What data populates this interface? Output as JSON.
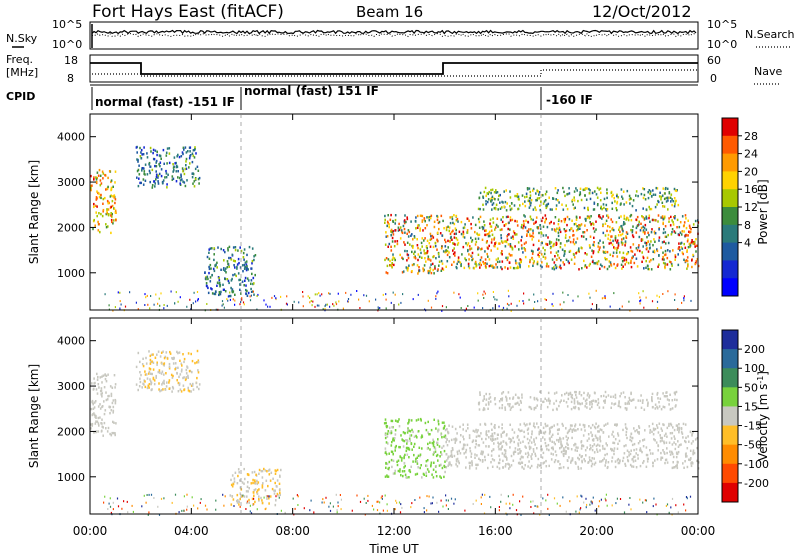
{
  "header": {
    "station": "Fort Hays East (fitACF)",
    "beam": "Beam 16",
    "date": "12/Oct/2012"
  },
  "noise_panel": {
    "left_label": "N.Sky",
    "right_label": "N.Search",
    "left_ticks": [
      "10^5",
      "10^0"
    ],
    "right_ticks": [
      "10^5",
      "10^0"
    ]
  },
  "freq_panel": {
    "left_label_1": "Freq.",
    "left_label_2": "[MHz]",
    "left_ticks": [
      "18",
      "8"
    ],
    "right_label": "Nave",
    "right_ticks": [
      "60",
      "0"
    ]
  },
  "cpid_panel": {
    "label": "CPID",
    "segments": [
      {
        "start_h": 0,
        "label": "normal (fast) -151 IF"
      },
      {
        "start_h": 6,
        "label": "normal (fast) 151 IF"
      },
      {
        "start_h": 18,
        "label": "-160 IF"
      }
    ]
  },
  "power_colorbar": {
    "title": "Power [dB]",
    "ticks": [
      "28",
      "24",
      "20",
      "16",
      "12",
      "8",
      "4"
    ],
    "colors": [
      "#e00000",
      "#ff5a00",
      "#ff9a00",
      "#ffd200",
      "#a8c800",
      "#3c8c3c",
      "#2a7a7a",
      "#1e5aa0",
      "#1428d2",
      "#0000ff"
    ]
  },
  "velocity_colorbar": {
    "title": "Velocity [m s",
    "title_superscript": "-1",
    "title_close": "]",
    "ticks": [
      "200",
      "100",
      "50",
      "15",
      "-15",
      "-50",
      "-100",
      "-200"
    ],
    "colors": [
      "#1e2d9b",
      "#2a6a9a",
      "#3c8c5a",
      "#78d23c",
      "#c8c8c0",
      "#ffbe28",
      "#ff8c00",
      "#ff4a00",
      "#e00000"
    ]
  },
  "slant_axis_label": "Slant Range [km]",
  "range_ticks": [
    "4000",
    "3000",
    "2000",
    "1000"
  ],
  "time_axis_label": "Time UT",
  "time_ticks": [
    "00:00",
    "04:00",
    "08:00",
    "12:00",
    "16:00",
    "20:00",
    "00:00"
  ],
  "chart_data": {
    "type": "heatmap",
    "x_range_hours": [
      0,
      24
    ],
    "y_range_km": [
      180,
      4500
    ],
    "time_axis": "Time UT",
    "panels": [
      {
        "name": "Power",
        "ylabel": "Slant Range [km]",
        "unit": "dB",
        "colorbar_range": [
          0,
          30
        ],
        "regions": [
          {
            "t_start": 0.0,
            "t_end": 1.0,
            "range_lo_km": 1900,
            "range_hi_km": 3300,
            "value_lo": 12,
            "value_hi": 28
          },
          {
            "t_start": 1.8,
            "t_end": 4.3,
            "range_lo_km": 2900,
            "range_hi_km": 3800,
            "value_lo": 4,
            "value_hi": 16
          },
          {
            "t_start": 4.5,
            "t_end": 6.5,
            "range_lo_km": 500,
            "range_hi_km": 1600,
            "value_lo": 4,
            "value_hi": 16
          },
          {
            "t_start": 11.6,
            "t_end": 14.0,
            "range_lo_km": 1000,
            "range_hi_km": 2300,
            "value_lo": 8,
            "value_hi": 30
          },
          {
            "t_start": 14.0,
            "t_end": 24.0,
            "range_lo_km": 1100,
            "range_hi_km": 2300,
            "value_lo": 8,
            "value_hi": 30
          },
          {
            "t_start": 15.3,
            "t_end": 23.2,
            "range_lo_km": 2400,
            "range_hi_km": 2900,
            "value_lo": 8,
            "value_hi": 20
          }
        ]
      },
      {
        "name": "Velocity",
        "ylabel": "Slant Range [km]",
        "unit": "m s-1",
        "colorbar_range": [
          -200,
          200
        ],
        "regions": [
          {
            "t_start": 0.0,
            "t_end": 1.0,
            "range_lo_km": 1900,
            "range_hi_km": 3300,
            "value_lo": -15,
            "value_hi": 15
          },
          {
            "t_start": 1.8,
            "t_end": 4.3,
            "range_lo_km": 2900,
            "range_hi_km": 3800,
            "value_lo": -50,
            "value_hi": 15
          },
          {
            "t_start": 5.5,
            "t_end": 7.5,
            "range_lo_km": 400,
            "range_hi_km": 1200,
            "value_lo": -50,
            "value_hi": 15
          },
          {
            "t_start": 11.6,
            "t_end": 14.0,
            "range_lo_km": 1000,
            "range_hi_km": 2300,
            "value_lo": 15,
            "value_hi": 50
          },
          {
            "t_start": 14.0,
            "t_end": 24.0,
            "range_lo_km": 1200,
            "range_hi_km": 2200,
            "value_lo": -15,
            "value_hi": 15
          },
          {
            "t_start": 15.3,
            "t_end": 23.2,
            "range_lo_km": 2500,
            "range_hi_km": 2900,
            "value_lo": -15,
            "value_hi": 15
          }
        ]
      }
    ]
  }
}
